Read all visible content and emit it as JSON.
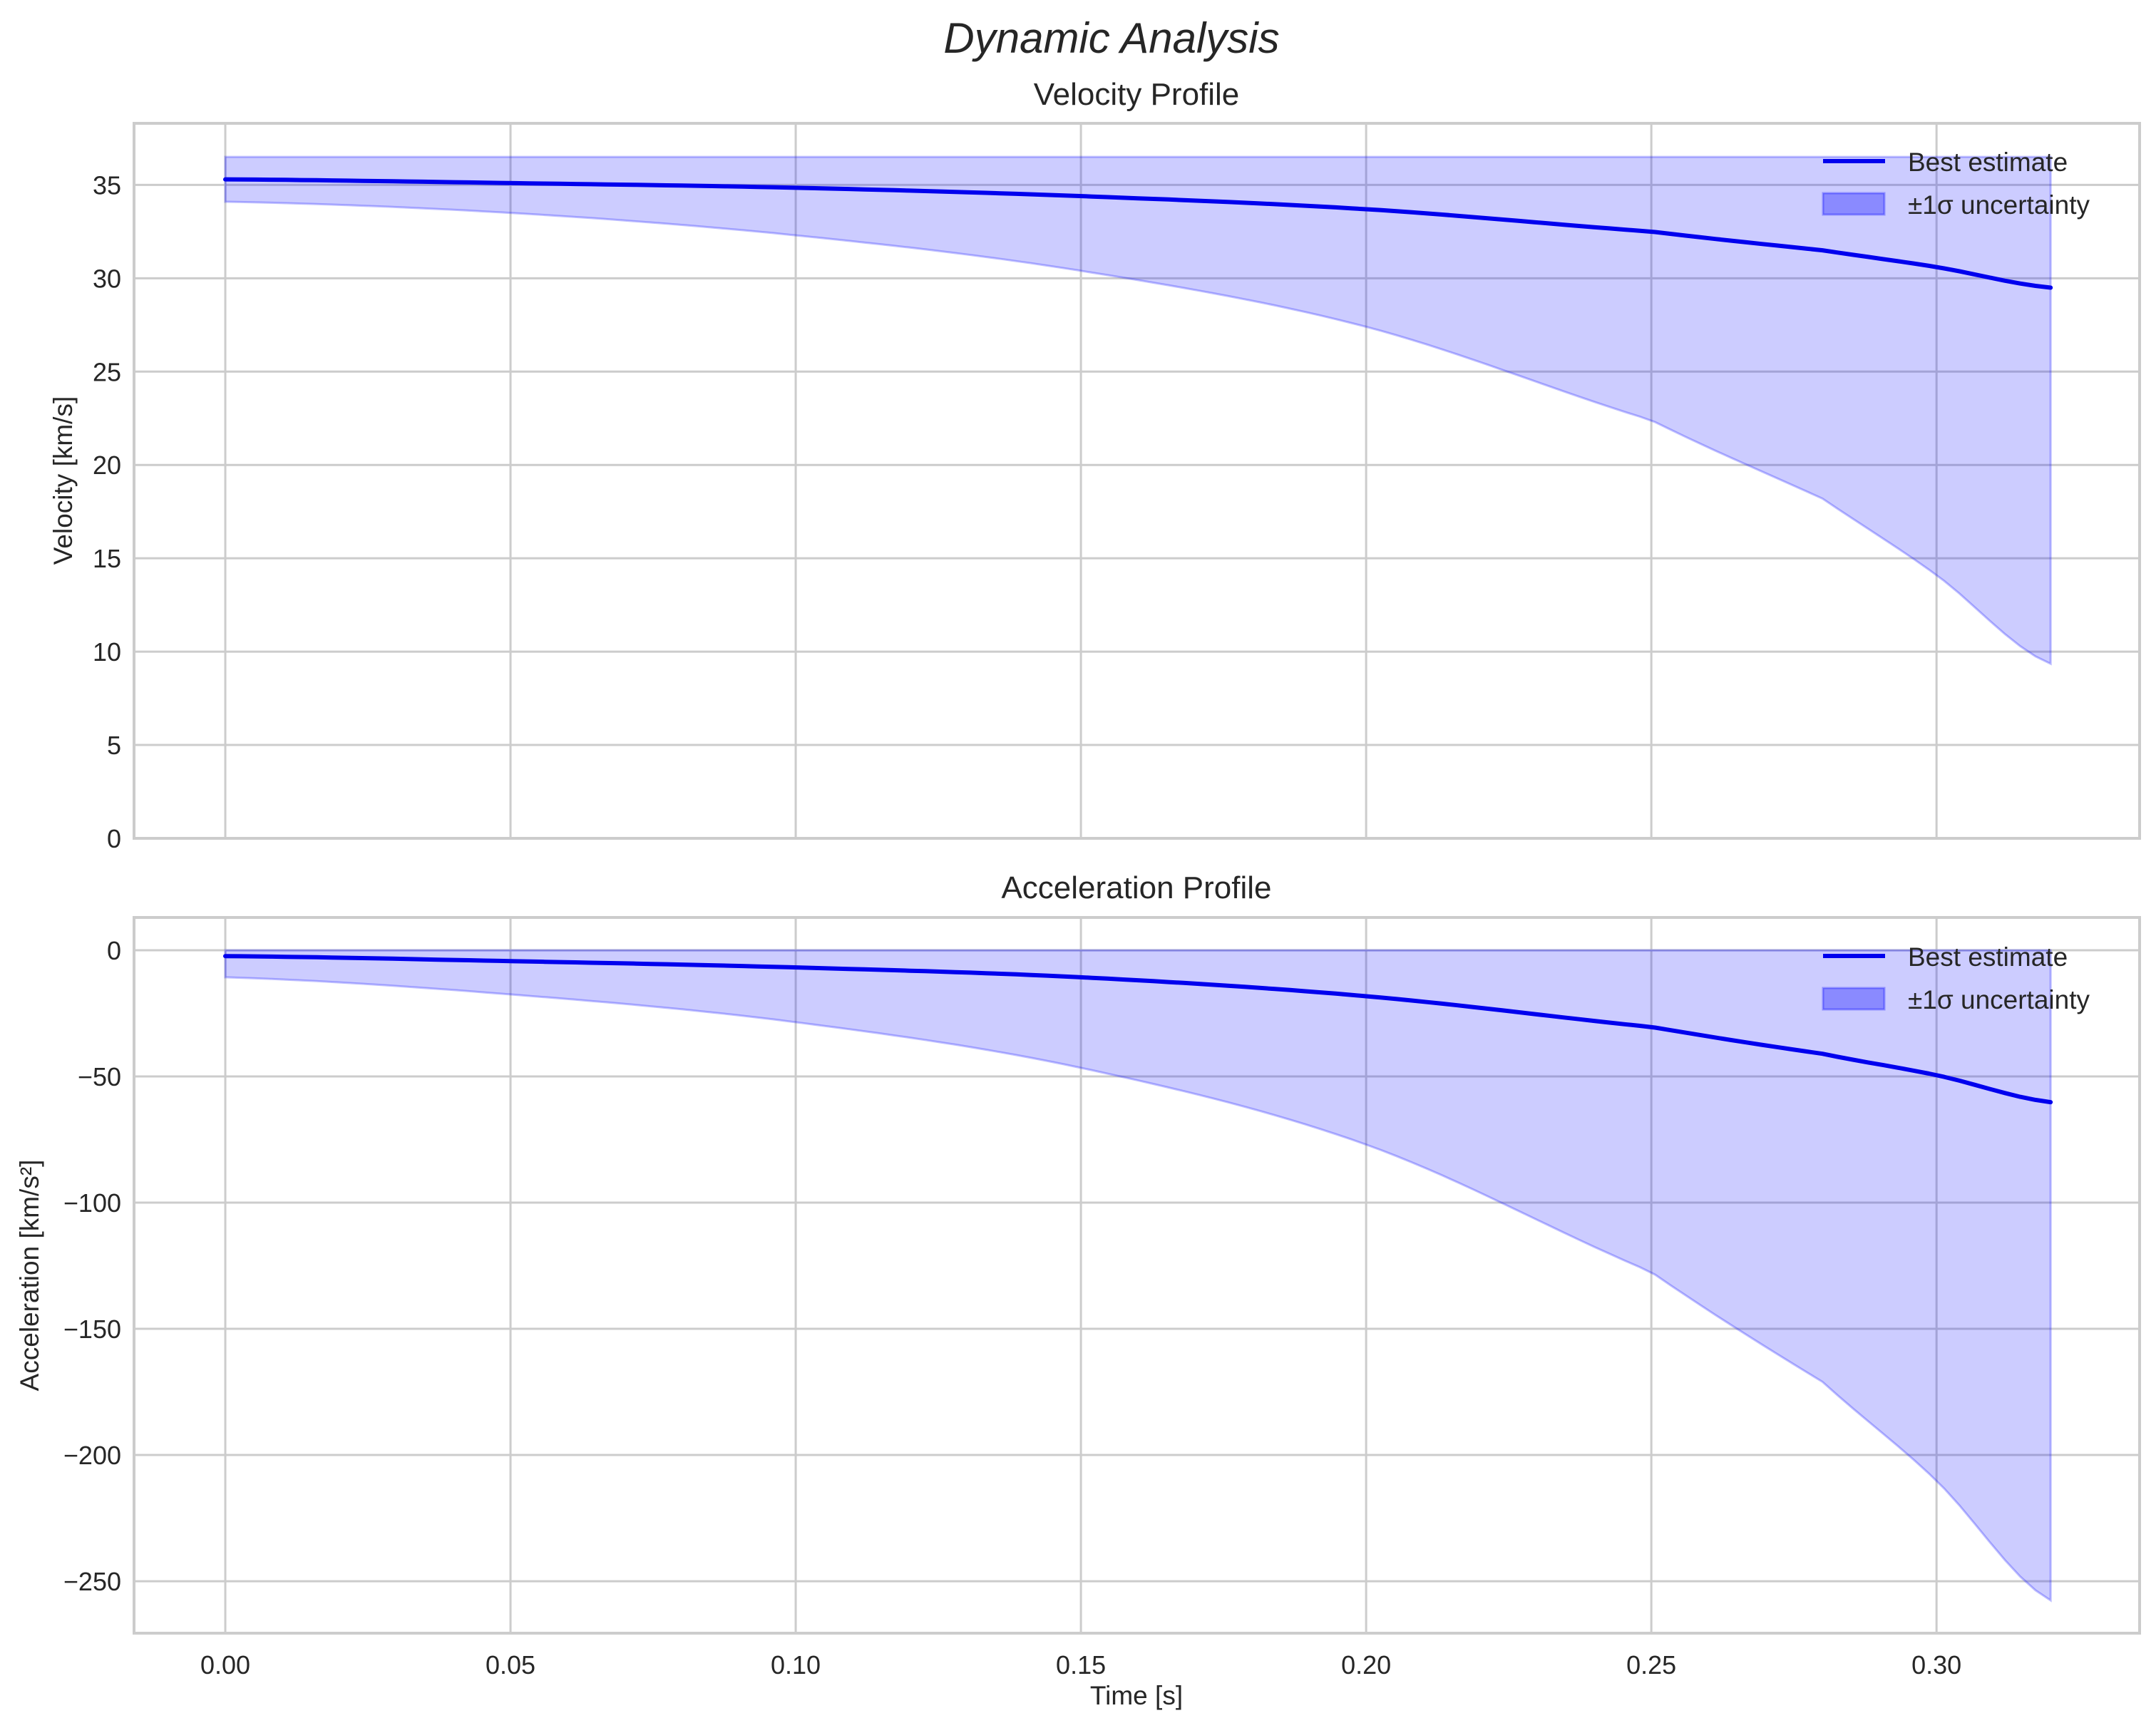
{
  "figure": {
    "suptitle": "Dynamic Analysis",
    "colors": {
      "line": "#0000ee",
      "band_fill": "#0000ff",
      "band_alpha": 0.2,
      "grid": "#cccccc",
      "text": "#262626"
    }
  },
  "chart_data": [
    {
      "type": "line",
      "title": "Velocity Profile",
      "xlabel": "",
      "ylabel": "Velocity [km/s]",
      "xlim": [
        -0.016,
        0.3356
      ],
      "ylim": [
        0,
        38.3
      ],
      "xticks": [
        0.0,
        0.05,
        0.1,
        0.15,
        0.2,
        0.25,
        0.3
      ],
      "xtick_labels_visible": false,
      "yticks": [
        0,
        5,
        10,
        15,
        20,
        25,
        30,
        35
      ],
      "ytick_labels": [
        "0",
        "5",
        "10",
        "15",
        "20",
        "25",
        "30",
        "35"
      ],
      "grid": true,
      "legend": {
        "position": "upper right",
        "entries": [
          "Best estimate",
          "±1σ uncertainty"
        ]
      },
      "x": [
        0.0,
        0.05,
        0.1,
        0.15,
        0.2,
        0.25,
        0.28,
        0.3,
        0.32
      ],
      "series": [
        {
          "name": "Best estimate",
          "kind": "line",
          "values": [
            35.3,
            35.1,
            34.85,
            34.4,
            33.7,
            32.5,
            31.5,
            30.6,
            29.5
          ]
        },
        {
          "name": "±1σ uncertainty",
          "kind": "band",
          "upper": [
            36.5,
            36.5,
            36.5,
            36.5,
            36.5,
            36.5,
            36.5,
            36.5,
            36.5
          ],
          "lower": [
            34.1,
            33.5,
            32.3,
            30.4,
            27.4,
            22.4,
            18.2,
            14.1,
            9.35
          ]
        }
      ]
    },
    {
      "type": "line",
      "title": "Acceleration Profile",
      "xlabel": "Time [s]",
      "ylabel": "Acceleration [km/s²]",
      "xlim": [
        -0.016,
        0.3356
      ],
      "ylim": [
        -270.6,
        13.0
      ],
      "xticks": [
        0.0,
        0.05,
        0.1,
        0.15,
        0.2,
        0.25,
        0.3
      ],
      "xtick_labels": [
        "0.00",
        "0.05",
        "0.10",
        "0.15",
        "0.20",
        "0.25",
        "0.30"
      ],
      "yticks": [
        0,
        -50,
        -100,
        -150,
        -200,
        -250
      ],
      "ytick_labels": [
        "0",
        "−50",
        "−100",
        "−150",
        "−200",
        "−250"
      ],
      "grid": true,
      "legend": {
        "position": "upper right",
        "entries": [
          "Best estimate",
          "±1σ uncertainty"
        ]
      },
      "x": [
        0.0,
        0.05,
        0.1,
        0.15,
        0.2,
        0.25,
        0.28,
        0.3,
        0.32
      ],
      "series": [
        {
          "name": "Best estimate",
          "kind": "line",
          "values": [
            -2.3,
            -4.3,
            -6.8,
            -10.7,
            -18.2,
            -30.4,
            -41.0,
            -49.5,
            -60.2
          ]
        },
        {
          "name": "±1σ uncertainty",
          "kind": "band",
          "upper": [
            0,
            0,
            0,
            0,
            0,
            0,
            0,
            0,
            0
          ],
          "lower": [
            -10.7,
            -17.5,
            -28.5,
            -46.6,
            -77.0,
            -127.5,
            -171.0,
            -210.2,
            -257.6
          ]
        }
      ]
    }
  ]
}
